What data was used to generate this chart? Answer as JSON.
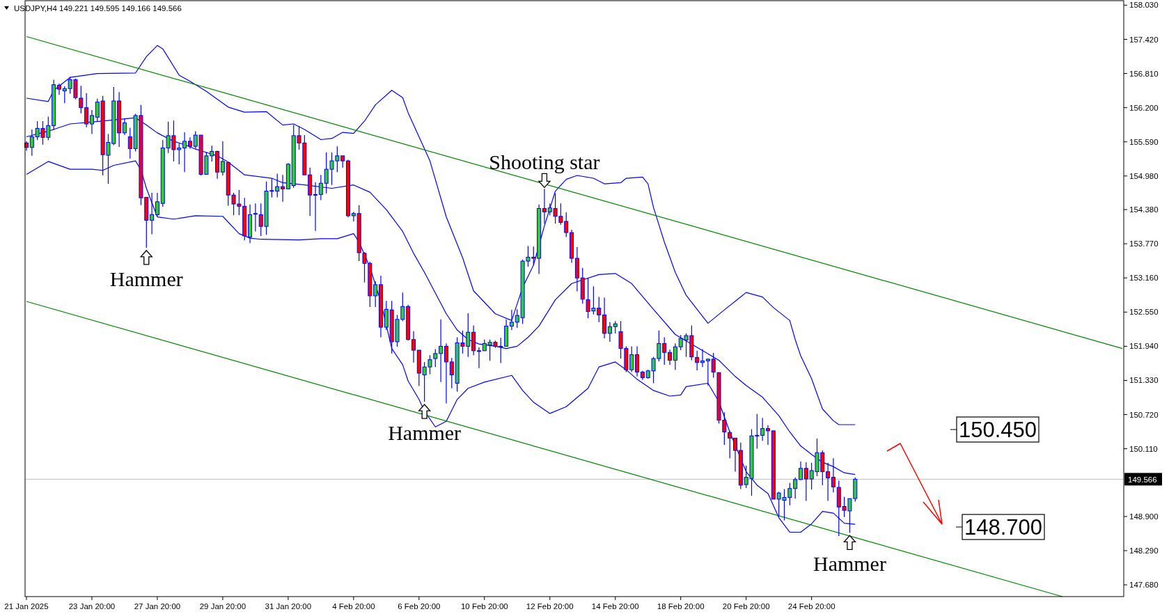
{
  "chart_data": {
    "type": "candlestick",
    "title": "USDJPY,H4  149.221 149.595 149.166 149.566",
    "color": "#0000ff",
    "categories": [
      "21 Jan 2025",
      null,
      null,
      null,
      null,
      null,
      null,
      null,
      null,
      null,
      null,
      null,
      "23 Jan 20:00",
      null,
      null,
      null,
      null,
      null,
      null,
      null,
      null,
      null,
      null,
      null,
      "27 Jan 20:00",
      null,
      null,
      null,
      null,
      null,
      null,
      null,
      null,
      null,
      null,
      null,
      "29 Jan 20:00",
      null,
      null,
      null,
      null,
      null,
      null,
      null,
      null,
      null,
      null,
      null,
      "31 Jan 20:00",
      null,
      null,
      null,
      null,
      null,
      null,
      null,
      null,
      null,
      null,
      null,
      "4 Feb 20:00",
      null,
      null,
      null,
      null,
      null,
      null,
      null,
      null,
      null,
      null,
      null,
      "6 Feb 20:00",
      null,
      null,
      null,
      null,
      null,
      null,
      null,
      null,
      null,
      null,
      null,
      "10 Feb 20:00",
      null,
      null,
      null,
      null,
      null,
      null,
      null,
      null,
      null,
      null,
      null,
      "12 Feb 20:00",
      null,
      null,
      null,
      null,
      null,
      null,
      null,
      null,
      null,
      null,
      null,
      "14 Feb 20:00",
      null,
      null,
      null,
      null,
      null,
      null,
      null,
      null,
      null,
      null,
      null,
      "18 Feb 20:00",
      null,
      null,
      null,
      null,
      null,
      null,
      null,
      null,
      null,
      null,
      null,
      "20 Feb 20:00",
      null,
      null,
      null,
      null,
      null,
      null,
      null,
      null,
      null,
      null,
      null,
      "24 Feb 20:00",
      null,
      null,
      null,
      null,
      null,
      null,
      null,
      null,
      null,
      null,
      null,
      null,
      null,
      null,
      null,
      null,
      null,
      null,
      null,
      null,
      null,
      null,
      null,
      null,
      null,
      null,
      null,
      null,
      null,
      null,
      null,
      null,
      null,
      null,
      null,
      null,
      null,
      null,
      null,
      null,
      null,
      null,
      null,
      null,
      null,
      null,
      null,
      null,
      null,
      null,
      null,
      null,
      null,
      null,
      null,
      null,
      null
    ],
    "ohlc": [
      [
        155.57,
        155.6,
        155.43,
        155.49
      ],
      [
        155.49,
        155.81,
        155.34,
        155.68
      ],
      [
        155.68,
        155.96,
        155.62,
        155.83
      ],
      [
        155.83,
        155.96,
        155.54,
        155.67
      ],
      [
        155.67,
        156.04,
        155.62,
        155.88
      ],
      [
        155.88,
        156.7,
        155.8,
        156.61
      ],
      [
        156.6,
        156.63,
        156.43,
        156.53
      ],
      [
        156.5,
        156.58,
        156.28,
        156.54
      ],
      [
        156.54,
        156.75,
        156.45,
        156.7
      ],
      [
        156.7,
        156.72,
        156.35,
        156.38
      ],
      [
        156.37,
        156.59,
        156.1,
        156.2
      ],
      [
        156.2,
        156.46,
        155.85,
        155.91
      ],
      [
        155.91,
        156.16,
        155.73,
        156.06
      ],
      [
        156.03,
        156.36,
        155.96,
        156.3
      ],
      [
        156.32,
        156.41,
        154.99,
        155.36
      ],
      [
        155.35,
        155.73,
        154.84,
        155.58
      ],
      [
        155.56,
        156.57,
        155.53,
        156.32
      ],
      [
        156.32,
        156.48,
        155.5,
        155.75
      ],
      [
        155.75,
        156.01,
        155.71,
        155.93
      ],
      [
        155.68,
        155.84,
        155.29,
        155.47
      ],
      [
        155.47,
        156.09,
        155.42,
        156.06
      ],
      [
        156.06,
        156.25,
        154.46,
        154.59
      ],
      [
        154.6,
        154.6,
        153.7,
        154.19
      ],
      [
        154.19,
        154.68,
        153.94,
        154.29
      ],
      [
        154.29,
        154.68,
        154.26,
        154.52
      ],
      [
        154.49,
        155.62,
        154.43,
        155.48
      ],
      [
        155.48,
        155.95,
        155.39,
        155.7
      ],
      [
        155.7,
        155.97,
        155.24,
        155.45
      ],
      [
        155.45,
        155.56,
        155.19,
        155.48
      ],
      [
        155.48,
        155.76,
        155.05,
        155.6
      ],
      [
        155.6,
        155.67,
        155.47,
        155.51
      ],
      [
        155.51,
        155.78,
        155.47,
        155.71
      ],
      [
        155.71,
        155.71,
        154.99,
        155.01
      ],
      [
        155.01,
        155.41,
        155.01,
        155.34
      ],
      [
        155.34,
        155.52,
        155.24,
        155.42
      ],
      [
        155.42,
        155.43,
        154.93,
        155.05
      ],
      [
        155.05,
        155.6,
        154.99,
        155.24
      ],
      [
        155.22,
        155.23,
        154.45,
        154.64
      ],
      [
        154.64,
        154.68,
        154.28,
        154.48
      ],
      [
        154.48,
        154.73,
        154.28,
        154.44
      ],
      [
        154.44,
        154.59,
        153.83,
        153.91
      ],
      [
        153.89,
        154.47,
        153.78,
        154.29
      ],
      [
        154.3,
        154.49,
        153.99,
        154.31
      ],
      [
        154.29,
        154.49,
        153.91,
        154.08
      ],
      [
        154.08,
        154.88,
        153.93,
        154.71
      ],
      [
        154.71,
        154.93,
        154.6,
        154.72
      ],
      [
        154.71,
        155.02,
        154.6,
        154.79
      ],
      [
        154.79,
        155.0,
        154.52,
        154.75
      ],
      [
        154.75,
        155.21,
        154.75,
        155.19
      ],
      [
        154.81,
        155.89,
        154.77,
        155.7
      ],
      [
        155.7,
        155.87,
        155.45,
        155.57
      ],
      [
        155.57,
        155.71,
        155.0,
        155.0
      ],
      [
        155.0,
        155.13,
        154.27,
        154.64
      ],
      [
        154.65,
        154.87,
        154.0,
        154.65
      ],
      [
        154.65,
        155.0,
        154.55,
        154.85
      ],
      [
        154.85,
        155.4,
        154.67,
        155.1
      ],
      [
        155.1,
        155.4,
        154.82,
        155.25
      ],
      [
        155.25,
        155.51,
        155.05,
        155.34
      ],
      [
        155.34,
        155.34,
        155.13,
        155.25
      ],
      [
        155.25,
        155.27,
        154.24,
        154.27
      ],
      [
        154.27,
        154.34,
        154.17,
        154.31
      ],
      [
        154.31,
        154.46,
        153.46,
        153.61
      ],
      [
        153.6,
        153.62,
        153.08,
        153.42
      ],
      [
        153.42,
        153.45,
        152.64,
        152.84
      ],
      [
        152.84,
        153.1,
        152.64,
        153.04
      ],
      [
        153.04,
        153.2,
        152.1,
        152.28
      ],
      [
        152.28,
        152.75,
        152.23,
        152.6
      ],
      [
        152.59,
        152.75,
        151.81,
        152.02
      ],
      [
        152.02,
        152.5,
        151.93,
        152.42
      ],
      [
        152.42,
        152.9,
        152.39,
        152.65
      ],
      [
        152.65,
        152.68,
        152.04,
        152.06
      ],
      [
        152.06,
        152.21,
        151.65,
        151.87
      ],
      [
        151.87,
        151.87,
        151.23,
        151.46
      ],
      [
        151.43,
        151.66,
        150.95,
        151.57
      ],
      [
        151.57,
        151.78,
        151.44,
        151.7
      ],
      [
        151.72,
        151.89,
        151.57,
        151.81
      ],
      [
        151.81,
        152.42,
        151.3,
        151.94
      ],
      [
        151.94,
        151.99,
        150.92,
        151.66
      ],
      [
        151.66,
        151.73,
        151.19,
        151.43
      ],
      [
        151.28,
        152.1,
        151.13,
        152.0
      ],
      [
        152.0,
        152.22,
        151.81,
        151.94
      ],
      [
        151.94,
        152.53,
        151.75,
        152.19
      ],
      [
        152.19,
        152.31,
        151.78,
        151.86
      ],
      [
        151.86,
        151.92,
        151.55,
        151.86
      ],
      [
        151.86,
        152.06,
        151.86,
        151.99
      ],
      [
        151.96,
        152.06,
        151.68,
        152.01
      ],
      [
        152.01,
        152.04,
        151.91,
        151.94
      ],
      [
        151.94,
        152.09,
        151.64,
        151.94
      ],
      [
        151.94,
        152.42,
        151.94,
        152.3
      ],
      [
        152.3,
        152.59,
        152.23,
        152.37
      ],
      [
        152.37,
        152.6,
        152.27,
        152.49
      ],
      [
        152.45,
        153.49,
        152.34,
        153.46
      ],
      [
        153.46,
        153.73,
        153.36,
        153.53
      ],
      [
        153.53,
        153.72,
        153.39,
        153.51
      ],
      [
        153.51,
        154.47,
        153.23,
        154.4
      ],
      [
        154.4,
        154.75,
        154.13,
        154.34
      ],
      [
        154.34,
        154.49,
        154.28,
        154.41
      ],
      [
        154.4,
        154.67,
        154.13,
        154.26
      ],
      [
        154.26,
        154.49,
        154.11,
        154.15
      ],
      [
        154.17,
        154.33,
        153.89,
        153.97
      ],
      [
        153.97,
        154.02,
        153.43,
        153.51
      ],
      [
        153.51,
        153.71,
        152.92,
        153.16
      ],
      [
        153.16,
        153.34,
        152.7,
        152.78
      ],
      [
        152.77,
        153.16,
        152.44,
        152.56
      ],
      [
        152.57,
        153.01,
        152.51,
        152.62
      ],
      [
        152.62,
        152.82,
        152.37,
        152.5
      ],
      [
        152.5,
        152.81,
        152.08,
        152.17
      ],
      [
        152.17,
        152.37,
        152.02,
        152.29
      ],
      [
        152.29,
        152.39,
        152.17,
        152.34
      ],
      [
        152.2,
        152.39,
        151.72,
        151.9
      ],
      [
        151.9,
        151.94,
        151.48,
        151.52
      ],
      [
        151.52,
        151.94,
        151.48,
        151.79
      ],
      [
        151.79,
        151.94,
        151.4,
        151.48
      ],
      [
        151.48,
        151.5,
        151.34,
        151.38
      ],
      [
        151.38,
        151.52,
        151.36,
        151.5
      ],
      [
        151.5,
        151.75,
        151.28,
        151.72
      ],
      [
        151.72,
        152.22,
        151.67,
        151.99
      ],
      [
        151.99,
        152.1,
        151.61,
        151.83
      ],
      [
        151.83,
        151.88,
        151.61,
        151.69
      ],
      [
        151.69,
        151.99,
        151.52,
        151.93
      ],
      [
        151.93,
        152.14,
        151.87,
        152.08
      ],
      [
        152.05,
        152.17,
        151.75,
        152.13
      ],
      [
        152.13,
        152.31,
        151.69,
        151.75
      ],
      [
        151.74,
        151.86,
        151.51,
        151.65
      ],
      [
        151.65,
        151.89,
        151.57,
        151.68
      ],
      [
        151.68,
        151.72,
        151.24,
        151.71
      ],
      [
        151.71,
        151.82,
        151.38,
        151.48
      ],
      [
        151.47,
        151.47,
        150.56,
        150.62
      ],
      [
        150.62,
        150.76,
        150.18,
        150.41
      ],
      [
        150.4,
        150.43,
        149.94,
        150.3
      ],
      [
        150.3,
        150.3,
        149.7,
        150.08
      ],
      [
        150.08,
        150.22,
        149.39,
        149.46
      ],
      [
        149.47,
        149.81,
        149.41,
        149.6
      ],
      [
        149.58,
        150.46,
        149.27,
        150.34
      ],
      [
        150.34,
        150.73,
        150.11,
        150.35
      ],
      [
        150.35,
        150.66,
        150.25,
        150.47
      ],
      [
        150.47,
        150.53,
        150.18,
        150.43
      ],
      [
        150.43,
        150.43,
        149.21,
        149.21
      ],
      [
        149.21,
        149.34,
        148.9,
        149.32
      ],
      [
        149.19,
        149.39,
        148.83,
        149.24
      ],
      [
        149.24,
        149.5,
        149.1,
        149.4
      ],
      [
        149.4,
        149.6,
        149.22,
        149.56
      ],
      [
        149.56,
        149.88,
        149.55,
        149.76
      ],
      [
        149.76,
        149.87,
        149.18,
        149.57
      ],
      [
        149.57,
        149.86,
        149.38,
        149.72
      ],
      [
        149.7,
        150.29,
        149.62,
        150.04
      ],
      [
        150.04,
        150.08,
        149.46,
        149.7
      ],
      [
        149.7,
        149.86,
        149.18,
        149.59
      ],
      [
        149.6,
        149.94,
        149.33,
        149.43
      ],
      [
        149.42,
        149.54,
        148.55,
        149.07
      ],
      [
        149.08,
        149.25,
        148.89,
        149.01
      ],
      [
        149.0,
        149.22,
        148.61,
        149.22
      ],
      [
        149.221,
        149.595,
        149.166,
        149.566
      ],
      null,
      null,
      null,
      null,
      null,
      null,
      null,
      null,
      null,
      null,
      null,
      null,
      null,
      null,
      null,
      null,
      null,
      null,
      null,
      null,
      null,
      null,
      null,
      null,
      null,
      null,
      null,
      null,
      null,
      null,
      null,
      null,
      null,
      null,
      null,
      null,
      null,
      null,
      null,
      null,
      null,
      null,
      null,
      null,
      null,
      null,
      null,
      null,
      null
    ],
    "series": [
      {
        "type": "line",
        "color": "#0000ff",
        "values": [
          156.37,
          null,
          null,
          null,
          156.31,
          156.51,
          null,
          null,
          156.74,
          null,
          null,
          null,
          null,
          156.81,
          null,
          null,
          null,
          null,
          null,
          null,
          156.82,
          null,
          157.11,
          null,
          157.31,
          157.25,
          null,
          null,
          156.78,
          null,
          156.67,
          null,
          null,
          156.49,
          null,
          null,
          null,
          156.21,
          null,
          null,
          156.12,
          null,
          null,
          null,
          156.13,
          null,
          null,
          155.89,
          null,
          155.91,
          null,
          155.81,
          null,
          null,
          155.63,
          null,
          155.65,
          null,
          155.76,
          null,
          155.74,
          null,
          155.96,
          null,
          156.25,
          null,
          null,
          156.51,
          null,
          156.38,
          156.11,
          null,
          null,
          null,
          155.25,
          null,
          null,
          154.25,
          null,
          null,
          153.52,
          null,
          152.93,
          null,
          null,
          null,
          152.52,
          null,
          null,
          152.4,
          null,
          152.99,
          null,
          153.39,
          null,
          154.09,
          null,
          154.71,
          null,
          154.92,
          null,
          154.99,
          null,
          null,
          154.94,
          null,
          154.84,
          null,
          null,
          154.86,
          154.94,
          null,
          null,
          154.96,
          154.84,
          154.42,
          null,
          153.8,
          null,
          153.26,
          null,
          152.85,
          null,
          152.6,
          null,
          152.35,
          null,
          null,
          152.59,
          null,
          null,
          152.82,
          152.9,
          null,
          null,
          152.82,
          null,
          152.63,
          null,
          null,
          152.4,
          152.06,
          151.77,
          null,
          151.36,
          null,
          150.82,
          null,
          150.61,
          150.54,
          null,
          null,
          150.54,
          null,
          null,
          null,
          null,
          null,
          null,
          null,
          null,
          null,
          null,
          null,
          null,
          null,
          null,
          null,
          null,
          null,
          null,
          null,
          null,
          null,
          null,
          null,
          null,
          null,
          null,
          null,
          null,
          null,
          null,
          null,
          null,
          null,
          null,
          null,
          null,
          null,
          null,
          null,
          null,
          null,
          null,
          null,
          null,
          null,
          null,
          null,
          null,
          null
        ]
      },
      {
        "type": "line",
        "color": "#0000ff",
        "values": [
          155.68,
          null,
          null,
          null,
          155.78,
          null,
          null,
          null,
          155.91,
          null,
          null,
          null,
          null,
          null,
          155.96,
          null,
          null,
          null,
          null,
          null,
          156.02,
          null,
          155.89,
          null,
          155.75,
          null,
          null,
          155.6,
          null,
          155.54,
          null,
          155.46,
          null,
          155.4,
          null,
          155.34,
          null,
          155.23,
          null,
          null,
          155.0,
          null,
          null,
          null,
          null,
          154.94,
          null,
          154.86,
          null,
          null,
          null,
          154.82,
          null,
          null,
          null,
          null,
          154.76,
          null,
          null,
          null,
          154.82,
          null,
          null,
          154.69,
          null,
          null,
          154.38,
          null,
          null,
          153.99,
          null,
          153.6,
          null,
          153.26,
          null,
          152.89,
          null,
          152.52,
          null,
          152.23,
          null,
          152.06,
          null,
          151.98,
          null,
          null,
          151.94,
          null,
          151.9,
          null,
          151.94,
          null,
          152.1,
          null,
          152.3,
          null,
          null,
          152.77,
          null,
          null,
          153.06,
          null,
          null,
          null,
          null,
          153.22,
          null,
          null,
          153.24,
          null,
          null,
          153.06,
          null,
          null,
          null,
          152.6,
          null,
          null,
          null,
          152.15,
          null,
          null,
          null,
          151.92,
          null,
          null,
          null,
          151.69,
          null,
          null,
          151.4,
          null,
          151.24,
          null,
          null,
          151.03,
          null,
          null,
          150.7,
          null,
          150.41,
          null,
          150.16,
          null,
          150.01,
          null,
          149.87,
          null,
          149.79,
          null,
          149.68,
          null,
          149.65,
          null,
          null,
          null,
          null,
          null,
          null,
          null,
          null,
          null,
          null,
          null,
          null,
          null,
          null,
          null,
          null,
          null,
          null,
          null,
          null,
          null,
          null,
          null,
          null,
          null,
          null,
          null,
          null,
          null,
          null,
          null,
          null,
          null,
          null,
          null,
          null,
          null,
          null,
          null,
          null,
          null,
          null,
          null,
          null,
          null,
          null,
          null,
          null,
          null
        ]
      },
      {
        "type": "line",
        "color": "#0000ff",
        "values": [
          155.01,
          null,
          null,
          null,
          155.24,
          null,
          null,
          null,
          155.1,
          null,
          null,
          null,
          155.1,
          null,
          155.08,
          null,
          155.17,
          null,
          null,
          null,
          155.25,
          155.09,
          154.76,
          null,
          154.25,
          null,
          null,
          154.21,
          null,
          null,
          null,
          154.27,
          null,
          null,
          null,
          null,
          154.26,
          null,
          null,
          153.95,
          null,
          153.87,
          null,
          153.85,
          null,
          null,
          null,
          null,
          null,
          null,
          153.84,
          null,
          null,
          null,
          153.86,
          null,
          null,
          153.86,
          null,
          null,
          153.95,
          153.8,
          null,
          153.35,
          null,
          152.73,
          null,
          151.9,
          null,
          151.61,
          151.32,
          null,
          150.99,
          150.78,
          null,
          150.5,
          null,
          150.6,
          null,
          150.99,
          null,
          151.19,
          null,
          null,
          151.3,
          null,
          null,
          null,
          null,
          151.42,
          null,
          151.15,
          null,
          150.94,
          null,
          null,
          150.74,
          null,
          null,
          150.86,
          null,
          null,
          null,
          151.19,
          null,
          151.57,
          null,
          null,
          151.66,
          null,
          151.52,
          null,
          151.35,
          null,
          null,
          151.15,
          null,
          null,
          151.05,
          null,
          151.07,
          151.22,
          null,
          null,
          null,
          151.28,
          null,
          150.95,
          null,
          150.41,
          null,
          null,
          149.7,
          null,
          149.46,
          null,
          149.31,
          null,
          148.88,
          null,
          148.62,
          null,
          148.62,
          null,
          148.77,
          null,
          148.99,
          null,
          148.96,
          null,
          148.78,
          null,
          148.76,
          null,
          null,
          null,
          null,
          null,
          null,
          null,
          null,
          null,
          null,
          null,
          null,
          null,
          null,
          null,
          null,
          null,
          null,
          null,
          null,
          null,
          null,
          null,
          null,
          null,
          null,
          null,
          null,
          null,
          null,
          null,
          null,
          null,
          null,
          null,
          null,
          null,
          null,
          null,
          null,
          null,
          null,
          null,
          null,
          null,
          null,
          null,
          null,
          null
        ]
      },
      {
        "type": "line",
        "color": "#008000",
        "values": [
          157.47,
          null,
          null,
          null,
          null,
          null,
          null,
          null,
          null,
          null,
          null,
          null,
          null,
          null,
          null,
          null,
          null,
          null,
          null,
          null,
          null,
          null,
          null,
          null,
          null,
          null,
          null,
          null,
          null,
          null,
          null,
          null,
          null,
          null,
          null,
          null,
          null,
          null,
          null,
          null,
          null,
          null,
          null,
          null,
          null,
          null,
          null,
          null,
          null,
          null,
          null,
          null,
          null,
          null,
          null,
          null,
          null,
          null,
          null,
          null,
          null,
          null,
          null,
          null,
          null,
          null,
          null,
          null,
          null,
          null,
          null,
          null,
          null,
          null,
          null,
          null,
          null,
          null,
          null,
          null,
          null,
          null,
          null,
          null,
          null,
          null,
          null,
          null,
          null,
          null,
          null,
          null,
          null,
          null,
          null,
          null,
          null,
          null,
          null,
          null,
          null,
          null,
          null,
          null,
          null,
          null,
          null,
          null,
          null,
          null,
          null,
          null,
          null,
          null,
          null,
          null,
          null,
          null,
          null,
          null,
          null,
          null,
          null,
          null,
          null,
          null,
          null,
          null,
          null,
          null,
          null,
          null,
          null,
          null,
          null,
          null,
          null,
          null,
          null,
          null,
          null,
          null,
          null,
          null,
          null,
          null,
          null,
          null,
          null,
          null,
          null,
          null,
          null,
          null,
          null,
          null,
          null,
          null,
          null,
          null,
          null,
          null,
          null,
          null,
          null,
          null,
          null,
          null,
          null,
          null,
          null,
          null,
          null,
          null,
          null,
          null,
          null,
          null,
          null,
          null,
          null,
          null,
          null,
          null,
          null,
          null,
          null,
          null,
          null,
          null,
          null,
          null,
          null,
          null,
          null,
          null,
          null,
          null,
          null,
          null,
          null,
          151.9
        ]
      },
      {
        "type": "line",
        "color": "#008000",
        "values": [
          152.74,
          null,
          null,
          null,
          null,
          null,
          null,
          null,
          null,
          null,
          null,
          null,
          null,
          null,
          null,
          null,
          null,
          null,
          null,
          null,
          null,
          null,
          null,
          null,
          null,
          null,
          null,
          null,
          null,
          null,
          null,
          null,
          null,
          null,
          null,
          null,
          null,
          null,
          null,
          null,
          null,
          null,
          null,
          null,
          null,
          null,
          null,
          null,
          null,
          null,
          null,
          null,
          null,
          null,
          null,
          null,
          null,
          null,
          null,
          null,
          null,
          null,
          null,
          null,
          null,
          null,
          null,
          null,
          null,
          null,
          null,
          null,
          null,
          null,
          null,
          null,
          null,
          null,
          null,
          null,
          null,
          null,
          null,
          null,
          null,
          null,
          null,
          null,
          null,
          null,
          null,
          null,
          null,
          null,
          null,
          null,
          null,
          null,
          null,
          null,
          null,
          null,
          null,
          null,
          null,
          null,
          null,
          null,
          null,
          null,
          null,
          null,
          null,
          null,
          null,
          null,
          null,
          null,
          null,
          null,
          null,
          null,
          null,
          null,
          null,
          null,
          null,
          null,
          null,
          null,
          null,
          null,
          null,
          null,
          null,
          null,
          null,
          null,
          null,
          null,
          null,
          null,
          null,
          null,
          null,
          null,
          null,
          null,
          null,
          null,
          null,
          null,
          null,
          null,
          null,
          null,
          null,
          null,
          null,
          null,
          null,
          null,
          null,
          null,
          null,
          null,
          null,
          null,
          null,
          null,
          null,
          null,
          null,
          null,
          null,
          null,
          null,
          null,
          null,
          null,
          null,
          null,
          null,
          null,
          null,
          null,
          null,
          null,
          null,
          null,
          147.47,
          null,
          null,
          null,
          null,
          null,
          null,
          null,
          null,
          null,
          null,
          null
        ]
      }
    ],
    "ylim": [
      147.47,
      158.11
    ],
    "yticks": [
      {
        "value": 158.03,
        "label": "158.030"
      },
      {
        "value": 157.42,
        "label": "157.420"
      },
      {
        "value": 156.81,
        "label": "156.810"
      },
      {
        "value": 156.2,
        "label": "156.200"
      },
      {
        "value": 155.59,
        "label": "155.590"
      },
      {
        "value": 154.98,
        "label": "154.980"
      },
      {
        "value": 154.38,
        "label": "154.380"
      },
      {
        "value": 153.77,
        "label": "153.770"
      },
      {
        "value": 153.16,
        "label": "153.160"
      },
      {
        "value": 152.55,
        "label": "152.550"
      },
      {
        "value": 151.94,
        "label": "151.940"
      },
      {
        "value": 151.33,
        "label": "151.330"
      },
      {
        "value": 150.72,
        "label": "150.720"
      },
      {
        "value": 150.11,
        "label": "150.110"
      },
      {
        "value": 148.9,
        "label": "148.900"
      },
      {
        "value": 148.29,
        "label": "148.290"
      },
      {
        "value": 147.68,
        "label": "147.680"
      }
    ],
    "ref_lines": [
      {
        "axis": "y",
        "value": 149.566,
        "label": "149.566",
        "color": "#c0c0c0"
      }
    ],
    "annotations": [
      {
        "text": "Hammer",
        "y": 153.7
      },
      {
        "text": "Shooting star",
        "y": 154.75
      },
      {
        "text": "Hammer",
        "y": 150.95
      },
      {
        "text": "Hammer",
        "y": 148.61
      },
      "150.450",
      "148.700"
    ]
  }
}
